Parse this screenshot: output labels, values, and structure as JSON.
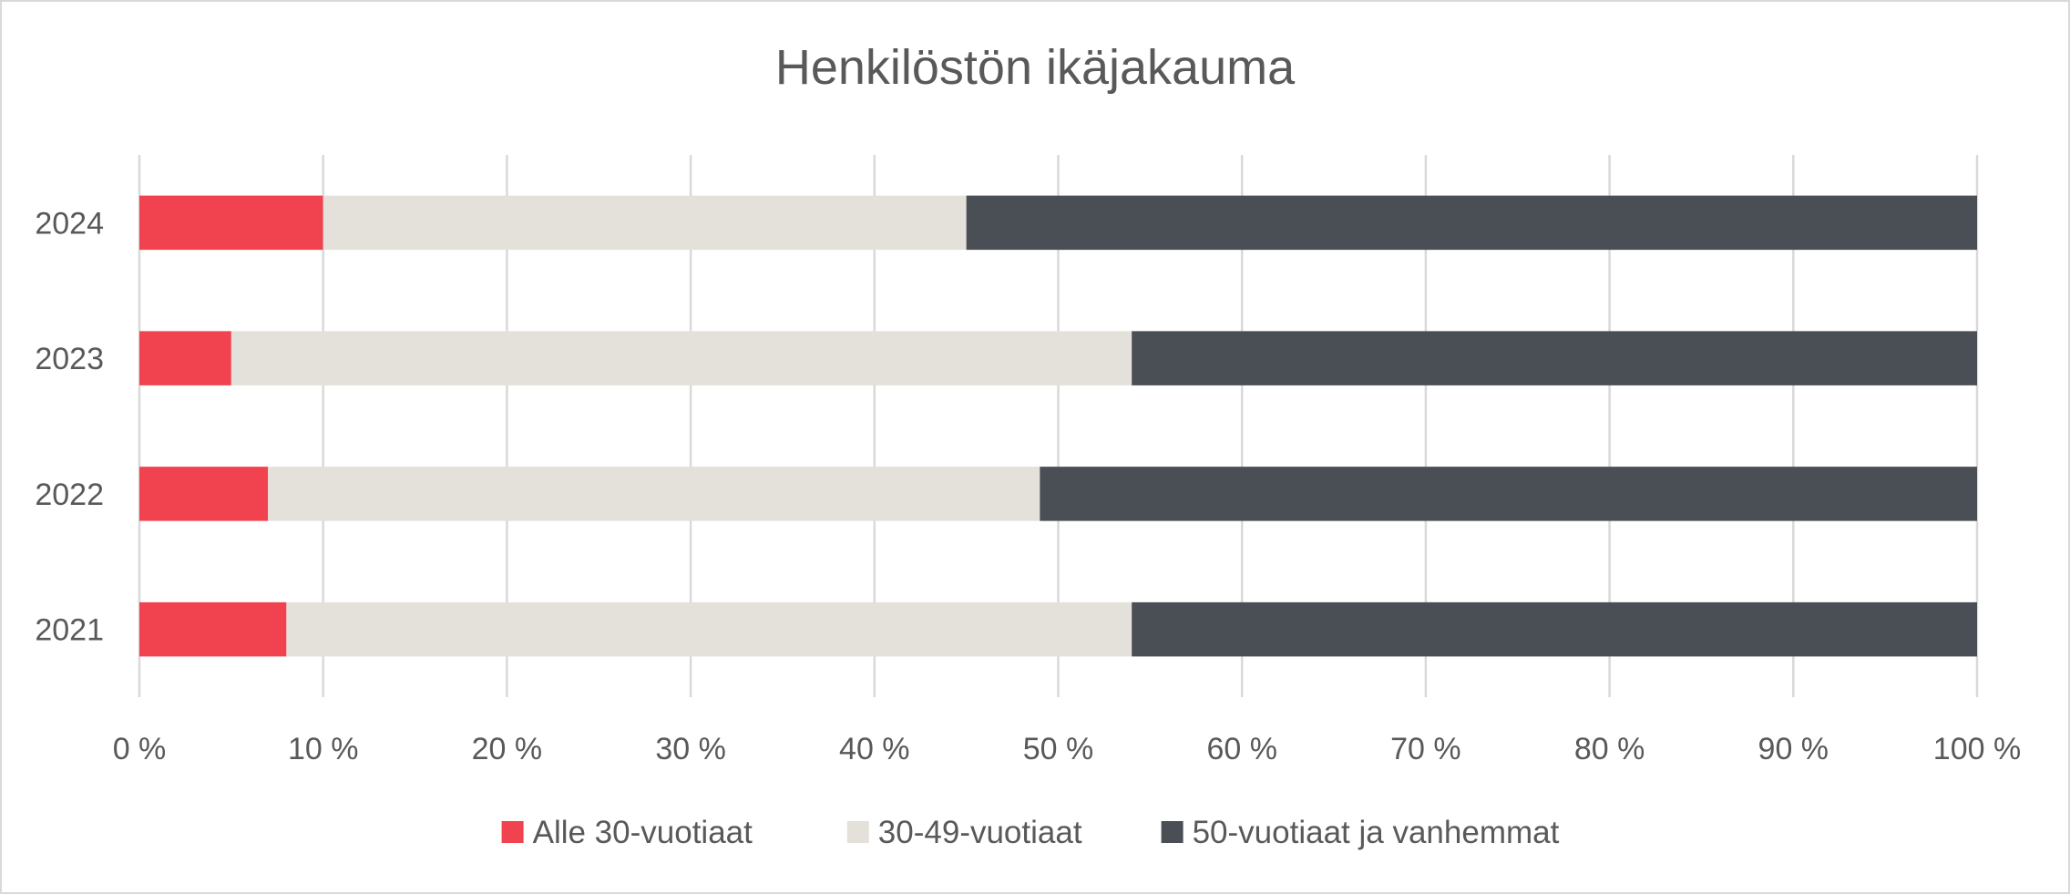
{
  "chart_data": {
    "type": "bar",
    "orientation": "horizontal",
    "stacked": "percent",
    "title": "Henkilöstön ikäjakauma",
    "categories": [
      "2024",
      "2023",
      "2022",
      "2021"
    ],
    "series": [
      {
        "name": "Alle 30-vuotiaat",
        "color": "#f0434f",
        "values": [
          10,
          5,
          7,
          8
        ]
      },
      {
        "name": "30-49-vuotiaat",
        "color": "#e4e1da",
        "values": [
          35,
          49,
          42,
          46
        ]
      },
      {
        "name": "50-vuotiaat ja vanhemmat",
        "color": "#4a4e55",
        "values": [
          55,
          46,
          51,
          46
        ]
      }
    ],
    "xlim": [
      0,
      100
    ],
    "x_ticks": [
      "0 %",
      "10 %",
      "20 %",
      "30 %",
      "40 %",
      "50 %",
      "60 %",
      "70 %",
      "80 %",
      "90 %",
      "100 %"
    ],
    "grid": "vertical",
    "legend_position": "bottom"
  }
}
